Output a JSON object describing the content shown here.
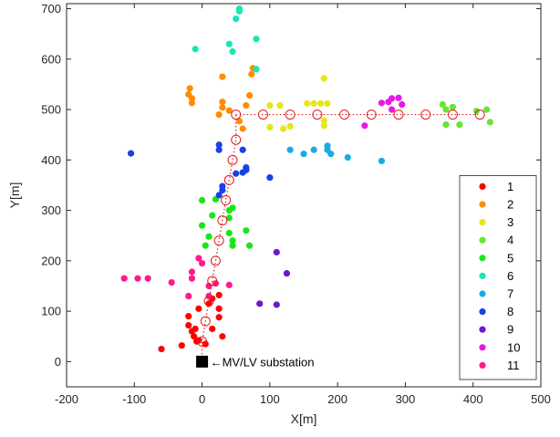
{
  "chart_data": {
    "type": "scatter",
    "xlabel": "X[m]",
    "ylabel": "Y[m]",
    "xlim": [
      -200,
      500
    ],
    "ylim": [
      -50,
      710
    ],
    "xticks": [
      -200,
      -100,
      0,
      100,
      200,
      300,
      400,
      500
    ],
    "yticks": [
      0,
      100,
      200,
      300,
      400,
      500,
      600,
      700
    ],
    "tick_labels": {
      "x": [
        "-200",
        "-100",
        "0",
        "100",
        "200",
        "300",
        "400",
        "500"
      ],
      "y": [
        "0",
        "100",
        "200",
        "300",
        "400",
        "500",
        "600",
        "700"
      ]
    },
    "grid": false,
    "legend_position": "bottom-right",
    "annotation": {
      "text": "←MV/LV substation",
      "x": 0,
      "y": 0
    },
    "substation": {
      "x": 0,
      "y": 0,
      "color": "#000000"
    },
    "feeder_nodes": {
      "color": "#e31a1c",
      "points": [
        [
          0,
          40
        ],
        [
          5,
          80
        ],
        [
          10,
          120
        ],
        [
          15,
          160
        ],
        [
          20,
          200
        ],
        [
          25,
          240
        ],
        [
          30,
          280
        ],
        [
          35,
          320
        ],
        [
          40,
          360
        ],
        [
          45,
          400
        ],
        [
          50,
          440
        ],
        [
          50,
          490
        ],
        [
          90,
          490
        ],
        [
          130,
          490
        ],
        [
          170,
          490
        ],
        [
          210,
          490
        ],
        [
          250,
          490
        ],
        [
          290,
          490
        ],
        [
          330,
          490
        ],
        [
          370,
          490
        ],
        [
          410,
          490
        ]
      ]
    },
    "series": [
      {
        "name": "1",
        "color": "#ff0000",
        "points": [
          [
            -60,
            25
          ],
          [
            -30,
            32
          ],
          [
            -20,
            90
          ],
          [
            -20,
            72
          ],
          [
            -15,
            60
          ],
          [
            -10,
            65
          ],
          [
            -12,
            50
          ],
          [
            -8,
            40
          ],
          [
            -5,
            42
          ],
          [
            -5,
            105
          ],
          [
            5,
            35
          ],
          [
            10,
            115
          ],
          [
            15,
            125
          ],
          [
            25,
            132
          ],
          [
            25,
            105
          ],
          [
            25,
            88
          ],
          [
            15,
            65
          ],
          [
            30,
            50
          ]
        ]
      },
      {
        "name": "2",
        "color": "#ff8c00",
        "points": [
          [
            -20,
            530
          ],
          [
            -18,
            542
          ],
          [
            -15,
            522
          ],
          [
            -15,
            513
          ],
          [
            25,
            490
          ],
          [
            30,
            504
          ],
          [
            30,
            515
          ],
          [
            30,
            565
          ],
          [
            40,
            498
          ],
          [
            55,
            477
          ],
          [
            60,
            462
          ],
          [
            65,
            508
          ],
          [
            70,
            528
          ],
          [
            73,
            570
          ],
          [
            75,
            582
          ]
        ]
      },
      {
        "name": "3",
        "color": "#e6e619",
        "points": [
          [
            100,
            508
          ],
          [
            115,
            508
          ],
          [
            100,
            465
          ],
          [
            120,
            462
          ],
          [
            130,
            467
          ],
          [
            155,
            512
          ],
          [
            165,
            512
          ],
          [
            175,
            512
          ],
          [
            180,
            562
          ],
          [
            185,
            512
          ],
          [
            180,
            468
          ],
          [
            180,
            478
          ]
        ]
      },
      {
        "name": "4",
        "color": "#66e633",
        "points": [
          [
            355,
            510
          ],
          [
            360,
            500
          ],
          [
            370,
            505
          ],
          [
            405,
            497
          ],
          [
            420,
            500
          ],
          [
            425,
            475
          ],
          [
            360,
            470
          ],
          [
            380,
            470
          ]
        ]
      },
      {
        "name": "5",
        "color": "#19e619",
        "points": [
          [
            0,
            320
          ],
          [
            0,
            270
          ],
          [
            5,
            230
          ],
          [
            10,
            248
          ],
          [
            15,
            290
          ],
          [
            20,
            322
          ],
          [
            40,
            300
          ],
          [
            45,
            305
          ],
          [
            40,
            285
          ],
          [
            40,
            255
          ],
          [
            45,
            240
          ],
          [
            45,
            230
          ],
          [
            65,
            260
          ],
          [
            70,
            230
          ]
        ]
      },
      {
        "name": "6",
        "color": "#19e6b3",
        "points": [
          [
            -10,
            620
          ],
          [
            40,
            630
          ],
          [
            45,
            615
          ],
          [
            50,
            680
          ],
          [
            55,
            695
          ],
          [
            55,
            700
          ],
          [
            80,
            640
          ],
          [
            80,
            580
          ]
        ]
      },
      {
        "name": "7",
        "color": "#19aae6",
        "points": [
          [
            130,
            420
          ],
          [
            150,
            412
          ],
          [
            165,
            420
          ],
          [
            185,
            428
          ],
          [
            185,
            420
          ],
          [
            190,
            412
          ],
          [
            215,
            405
          ],
          [
            265,
            398
          ]
        ]
      },
      {
        "name": "8",
        "color": "#1a40e6",
        "points": [
          [
            -105,
            413
          ],
          [
            25,
            430
          ],
          [
            25,
            420
          ],
          [
            30,
            348
          ],
          [
            30,
            340
          ],
          [
            25,
            330
          ],
          [
            50,
            373
          ],
          [
            60,
            375
          ],
          [
            65,
            385
          ],
          [
            65,
            380
          ],
          [
            60,
            420
          ],
          [
            100,
            365
          ]
        ]
      },
      {
        "name": "9",
        "color": "#6a19cc",
        "points": [
          [
            110,
            217
          ],
          [
            125,
            175
          ],
          [
            85,
            115
          ],
          [
            110,
            113
          ]
        ]
      },
      {
        "name": "10",
        "color": "#e619e6",
        "points": [
          [
            240,
            468
          ],
          [
            265,
            513
          ],
          [
            275,
            515
          ],
          [
            280,
            522
          ],
          [
            290,
            523
          ],
          [
            295,
            510
          ],
          [
            280,
            500
          ]
        ]
      },
      {
        "name": "11",
        "color": "#ff1a8c",
        "points": [
          [
            -115,
            165
          ],
          [
            -95,
            165
          ],
          [
            -80,
            165
          ],
          [
            -45,
            157
          ],
          [
            -15,
            178
          ],
          [
            -15,
            165
          ],
          [
            -20,
            130
          ],
          [
            10,
            130
          ],
          [
            10,
            150
          ],
          [
            20,
            155
          ],
          [
            40,
            152
          ],
          [
            0,
            195
          ],
          [
            -5,
            205
          ]
        ]
      }
    ]
  }
}
